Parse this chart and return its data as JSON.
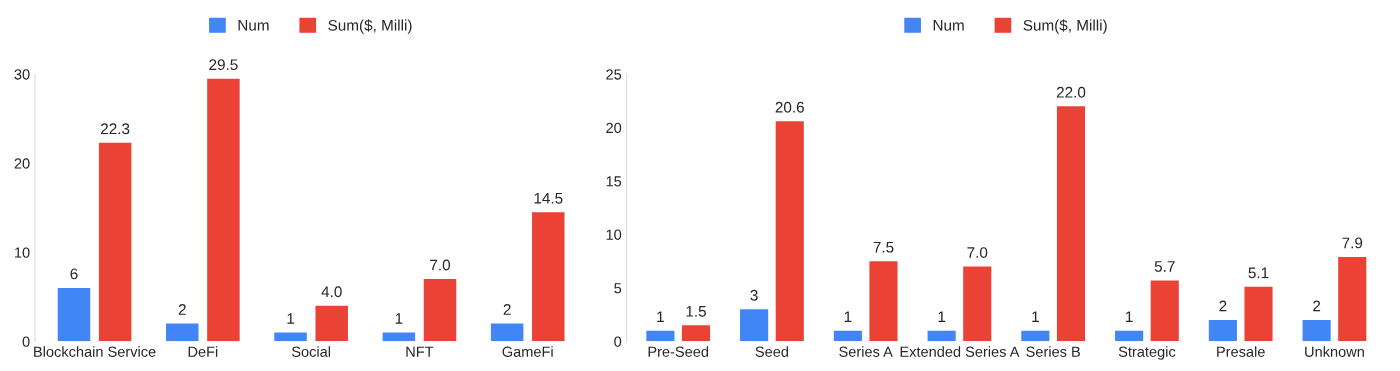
{
  "chart_data": [
    {
      "type": "bar",
      "categories": [
        "Blockchain Service",
        "DeFi",
        "Social",
        "NFT",
        "GameFi"
      ],
      "ylim": [
        0,
        30
      ],
      "yticks": [
        0,
        10,
        20,
        30
      ],
      "grid": false,
      "legend": "top",
      "series": [
        {
          "name": "Num",
          "color": "#4285f4",
          "values": [
            6,
            2,
            1,
            1,
            2
          ],
          "value_labels": [
            "6",
            "2",
            "1",
            "1",
            "2"
          ]
        },
        {
          "name": "Sum($, Milli)",
          "color": "#ea4335",
          "values": [
            22.3,
            29.5,
            4.0,
            7.0,
            14.5
          ],
          "value_labels": [
            "22.3",
            "29.5",
            "4.0",
            "7.0",
            "14.5"
          ]
        }
      ]
    },
    {
      "type": "bar",
      "categories": [
        "Pre-Seed",
        "Seed",
        "Series A",
        "Extended Series A",
        "Series B",
        "Strategic",
        "Presale",
        "Unknown"
      ],
      "ylim": [
        0,
        25
      ],
      "yticks": [
        0,
        5,
        10,
        15,
        20,
        25
      ],
      "grid": false,
      "legend": "top",
      "series": [
        {
          "name": "Num",
          "color": "#4285f4",
          "values": [
            1,
            3,
            1,
            1,
            1,
            1,
            2,
            2
          ],
          "value_labels": [
            "1",
            "3",
            "1",
            "1",
            "1",
            "1",
            "2",
            "2"
          ]
        },
        {
          "name": "Sum($, Milli)",
          "color": "#ea4335",
          "values": [
            1.5,
            20.6,
            7.5,
            7.0,
            22.0,
            5.7,
            5.1,
            7.9
          ],
          "value_labels": [
            "1.5",
            "20.6",
            "7.5",
            "7.0",
            "22.0",
            "5.7",
            "5.1",
            "7.9"
          ]
        }
      ]
    }
  ]
}
